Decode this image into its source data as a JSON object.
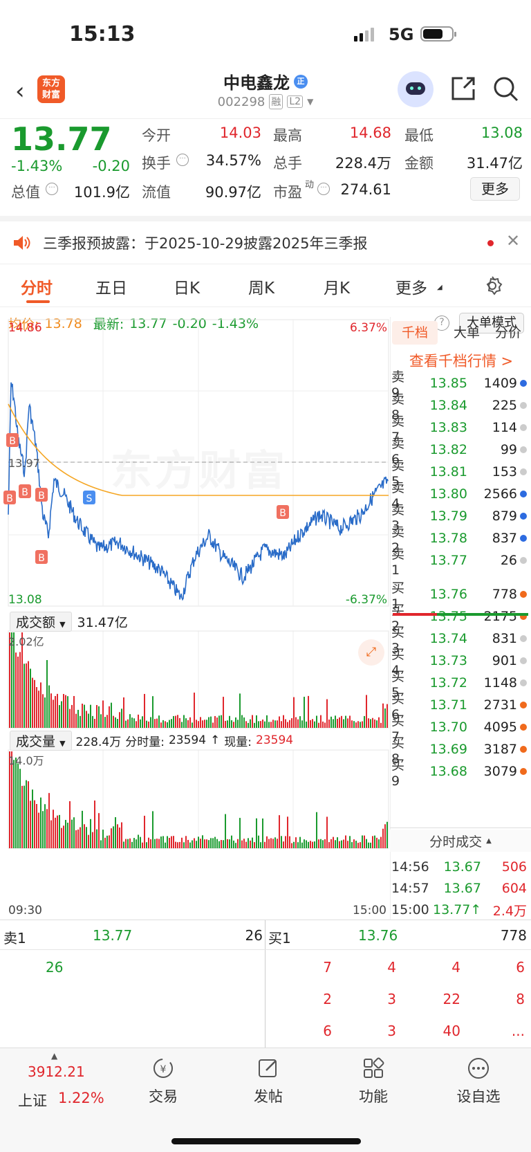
{
  "status": {
    "time": "15:13",
    "network": "5G"
  },
  "header": {
    "logo_line1": "东方",
    "logo_line2": "财富",
    "stock_name": "中电鑫龙",
    "badge": "正",
    "code": "002298",
    "tag1": "融",
    "tag2": "L2"
  },
  "quote": {
    "price": "13.77",
    "change_pct": "-1.43%",
    "change": "-0.20",
    "open_label": "今开",
    "open": "14.03",
    "high_label": "最高",
    "high": "14.68",
    "low_label": "最低",
    "low": "13.08",
    "turnover_label": "换手",
    "turnover": "34.57%",
    "vol_label": "总手",
    "vol": "228.4万",
    "amount_label": "金额",
    "amount": "31.47亿",
    "mcap_label": "总值",
    "mcap": "101.9亿",
    "float_label": "流值",
    "float": "90.97亿",
    "pe_label": "市盈",
    "pe_sup": "动",
    "pe": "274.61",
    "more": "更多"
  },
  "notice": {
    "text": "三季报预披露：于2025-10-29披露2025年三季报"
  },
  "tabs": [
    "分时",
    "五日",
    "日K",
    "周K",
    "月K",
    "更多"
  ],
  "chart_info": {
    "avg_label": "均价:",
    "avg": "13.78",
    "latest_label": "最新:",
    "latest": "13.77",
    "chg": "-0.20",
    "pct": "-1.43%",
    "mode_btn": "大单模式"
  },
  "chart_axes": {
    "top": "14.86",
    "top_pct": "6.37%",
    "mid": "13.97",
    "bottom": "13.08",
    "bottom_pct": "-6.37%",
    "t_start": "09:30",
    "t_end": "15:00"
  },
  "amount_panel": {
    "label": "成交额",
    "total": "31.47亿",
    "max": "2.02亿"
  },
  "volume_panel": {
    "label": "成交量",
    "total": "228.4万",
    "minute_label": "分时量:",
    "minute": "23594",
    "now_label": "现量:",
    "now": "23594",
    "max": "14.0万"
  },
  "side_tabs": [
    "千档",
    "大单",
    "分价"
  ],
  "side_link": "查看千档行情 >",
  "asks": [
    {
      "lvl": "卖9",
      "price": "13.85",
      "vol": "1409",
      "color": "#2d6be0"
    },
    {
      "lvl": "卖8",
      "price": "13.84",
      "vol": "225",
      "color": "#ccc"
    },
    {
      "lvl": "卖7",
      "price": "13.83",
      "vol": "114",
      "color": "#ccc"
    },
    {
      "lvl": "卖6",
      "price": "13.82",
      "vol": "99",
      "color": "#ccc"
    },
    {
      "lvl": "卖5",
      "price": "13.81",
      "vol": "153",
      "color": "#ccc"
    },
    {
      "lvl": "卖4",
      "price": "13.80",
      "vol": "2566",
      "color": "#2d6be0"
    },
    {
      "lvl": "卖3",
      "price": "13.79",
      "vol": "879",
      "color": "#2d6be0"
    },
    {
      "lvl": "卖2",
      "price": "13.78",
      "vol": "837",
      "color": "#2d6be0"
    },
    {
      "lvl": "卖1",
      "price": "13.77",
      "vol": "26",
      "color": "#ccc"
    }
  ],
  "bids": [
    {
      "lvl": "买1",
      "price": "13.76",
      "vol": "778",
      "color": "#f06a1c"
    },
    {
      "lvl": "买2",
      "price": "13.75",
      "vol": "2175",
      "color": "#f06a1c"
    },
    {
      "lvl": "买3",
      "price": "13.74",
      "vol": "831",
      "color": "#ccc"
    },
    {
      "lvl": "买4",
      "price": "13.73",
      "vol": "901",
      "color": "#ccc"
    },
    {
      "lvl": "买5",
      "price": "13.72",
      "vol": "1148",
      "color": "#ccc"
    },
    {
      "lvl": "买6",
      "price": "13.71",
      "vol": "2731",
      "color": "#f06a1c"
    },
    {
      "lvl": "买7",
      "price": "13.70",
      "vol": "4095",
      "color": "#f06a1c"
    },
    {
      "lvl": "买8",
      "price": "13.69",
      "vol": "3187",
      "color": "#f06a1c"
    },
    {
      "lvl": "买9",
      "price": "13.68",
      "vol": "3079",
      "color": "#f06a1c"
    }
  ],
  "ticks_title": "分时成交",
  "ticks": [
    {
      "t": "14:56",
      "p": "13.67",
      "v": "506"
    },
    {
      "t": "14:57",
      "p": "13.67",
      "v": "604"
    },
    {
      "t": "15:00",
      "p": "13.77↑",
      "v": "2.4万"
    }
  ],
  "queue": {
    "ask_label": "卖1",
    "ask_price": "13.77",
    "ask_vol": "26",
    "bid_label": "买1",
    "bid_price": "13.76",
    "bid_vol": "778",
    "ask_orders": [
      "26"
    ],
    "bid_orders": [
      "7",
      "4",
      "4",
      "6",
      "2",
      "3",
      "22",
      "8",
      "6",
      "3",
      "40",
      "..."
    ]
  },
  "bottom": {
    "index_value": "3912.21",
    "index_name": "上证",
    "index_pct": "1.22%",
    "items": [
      "交易",
      "发帖",
      "功能",
      "设自选"
    ]
  },
  "colors": {
    "up": "#e0262c",
    "down": "#1a9a2e",
    "avg_line": "#f5a623",
    "price_line": "#2a6cc8",
    "accent": "#f06a1c"
  }
}
